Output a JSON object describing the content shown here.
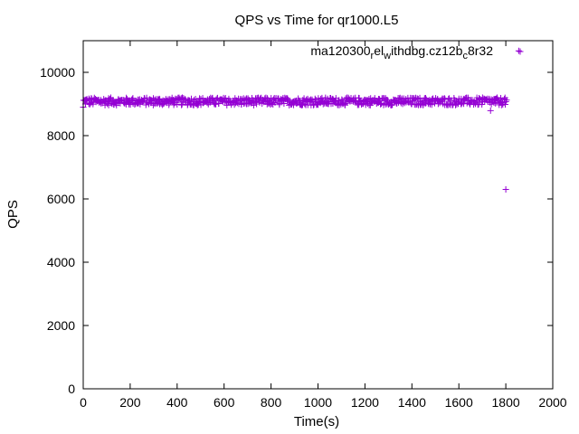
{
  "chart_data": {
    "type": "scatter",
    "title": "QPS vs Time for qr1000.L5",
    "xlabel": "Time(s)",
    "ylabel": "QPS",
    "xlim": [
      0,
      2000
    ],
    "ylim": [
      0,
      11000
    ],
    "xticks": [
      0,
      200,
      400,
      600,
      800,
      1000,
      1200,
      1400,
      1600,
      1800,
      2000
    ],
    "yticks": [
      0,
      2000,
      4000,
      6000,
      8000,
      10000
    ],
    "grid": false,
    "legend_position": "top-right",
    "series": [
      {
        "name": "ma120300_rel_withdbg.cz12b_c8r32",
        "legend_parts": [
          {
            "text": "ma120300",
            "sub": false
          },
          {
            "text": "r",
            "sub": true
          },
          {
            "text": "el",
            "sub": false
          },
          {
            "text": "w",
            "sub": true
          },
          {
            "text": "ithdbg.cz12b",
            "sub": false
          },
          {
            "text": "c",
            "sub": true
          },
          {
            "text": "8r32",
            "sub": false
          }
        ],
        "color": "#9400d3",
        "marker": "+",
        "band": {
          "x_start": 0,
          "x_end": 1800,
          "x_step": 5,
          "y_center": 9080,
          "y_spread": 120
        },
        "points": [
          {
            "x": 0,
            "y": 8900
          },
          {
            "x": 1735,
            "y": 8790
          },
          {
            "x": 1800,
            "y": 6300
          },
          {
            "x": 1855,
            "y": 10680
          }
        ]
      }
    ]
  }
}
